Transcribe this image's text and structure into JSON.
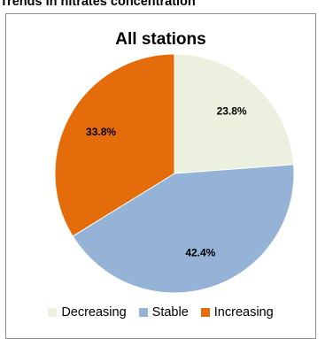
{
  "page": {
    "heading": "Trends in nitrates concentration"
  },
  "chart_data": {
    "type": "pie",
    "title": "All stations",
    "slices": [
      {
        "name": "Decreasing",
        "value": 23.8,
        "label": "23.8%",
        "color": "#ebf1de"
      },
      {
        "name": "Stable",
        "value": 42.4,
        "label": "42.4%",
        "color": "#95b3d7"
      },
      {
        "name": "Increasing",
        "value": 33.8,
        "label": "33.8%",
        "color": "#e46c0a"
      }
    ],
    "start": "12 o'clock",
    "direction": "clockwise",
    "legend_position": "bottom"
  }
}
